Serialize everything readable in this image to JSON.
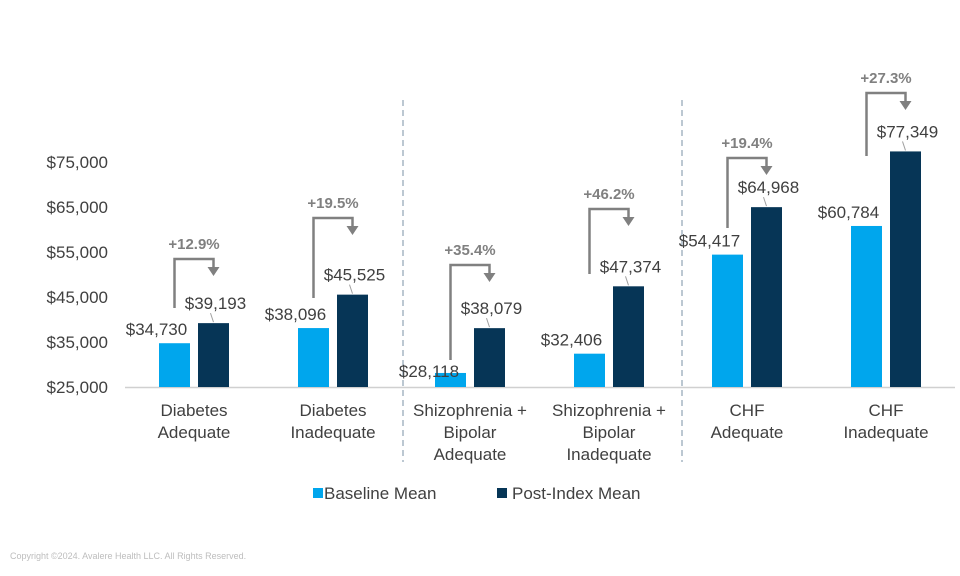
{
  "chart_data": {
    "type": "bar",
    "title": "",
    "xlabel": "",
    "ylabel": "",
    "ylim": [
      25000,
      75000
    ],
    "yticks": [
      "$25,000",
      "$35,000",
      "$45,000",
      "$55,000",
      "$65,000",
      "$75,000"
    ],
    "ytick_values": [
      25000,
      35000,
      45000,
      55000,
      65000,
      75000
    ],
    "categories": [
      [
        "Diabetes",
        "Adequate"
      ],
      [
        "Diabetes",
        "Inadequate"
      ],
      [
        "Shizophrenia +",
        "Bipolar",
        "Adequate"
      ],
      [
        "Shizophrenia +",
        "Bipolar",
        "Inadequate"
      ],
      [
        "CHF",
        "Adequate"
      ],
      [
        "CHF",
        "Inadequate"
      ]
    ],
    "series": [
      {
        "name": "Baseline Mean",
        "color": "#00a6ed",
        "values": [
          34730,
          38096,
          28118,
          32406,
          54417,
          60784
        ],
        "labels": [
          "$34,730",
          "$38,096",
          "$28,118",
          "$32,406",
          "$54,417",
          "$60,784"
        ]
      },
      {
        "name": "Post-Index Mean",
        "color": "#063556",
        "values": [
          39193,
          45525,
          38079,
          47374,
          64968,
          77349
        ],
        "labels": [
          "$39,193",
          "$45,525",
          "$38,079",
          "$47,374",
          "$64,968",
          "$77,349"
        ]
      }
    ],
    "annotations": [
      "+12.9%",
      "+19.5%",
      "+35.4%",
      "+46.2%",
      "+19.4%",
      "+27.3%"
    ],
    "legend": "bottom"
  },
  "footer": {
    "copyright": "Copyright ©2024. Avalere Health LLC. All Rights Reserved."
  }
}
